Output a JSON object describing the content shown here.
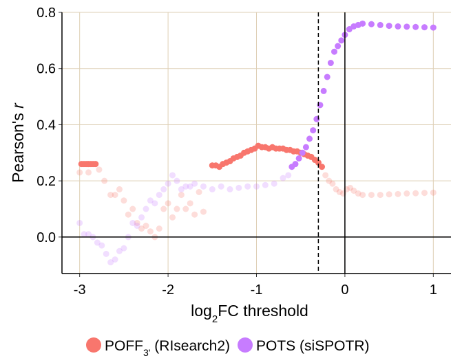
{
  "chart_data": {
    "type": "scatter",
    "x_label_parts": [
      "log",
      "2",
      "FC threshold"
    ],
    "y_label_parts": [
      "Pearson's ",
      "r"
    ],
    "xlim": [
      -3.2,
      1.2
    ],
    "ylim": [
      -0.13,
      0.8
    ],
    "xticks": [
      -3,
      -2,
      -1,
      0,
      1
    ],
    "yticks": [
      {
        "value": 0,
        "label": "0.0"
      },
      0.2,
      0.4,
      0.6,
      0.8
    ],
    "grid": true,
    "hlines": [
      {
        "y": 0,
        "style": "solid"
      }
    ],
    "vlines": [
      {
        "x": 0,
        "style": "solid"
      },
      {
        "x": -0.3,
        "style": "dashed"
      }
    ],
    "legend_position": "bottom",
    "series": [
      {
        "color": "#f8766d",
        "alpha": 0.25,
        "x": [
          -3,
          -2.9,
          -2.78,
          -2.72,
          -2.65,
          -2.6,
          -2.55,
          -2.5,
          -2.45,
          -2.4,
          -2.35,
          -2.3,
          -2.25,
          -2.2,
          -2.15,
          -2.1,
          -2.05,
          -2,
          -1.95,
          -1.9,
          -1.85,
          -1.8,
          -1.75,
          -1.7,
          -1.65,
          -1.6,
          -0.22,
          -0.18,
          -0.14,
          -0.1,
          -0.06,
          -0.02,
          0.02,
          0.06,
          0.1,
          0.15,
          0.2,
          0.3,
          0.4,
          0.5,
          0.6,
          0.7,
          0.8,
          0.9,
          1
        ],
        "values": [
          0.23,
          0.23,
          0.24,
          0.2,
          0.15,
          0.15,
          0.17,
          0.13,
          0.08,
          0.1,
          0.05,
          0.03,
          0.04,
          0.02,
          0.0,
          0.03,
          0.1,
          0.12,
          0.07,
          0.1,
          0.15,
          0.1,
          0.12,
          0.08,
          0.16,
          0.09,
          0.22,
          0.2,
          0.19,
          0.17,
          0.16,
          0.155,
          0.17,
          0.175,
          0.165,
          0.155,
          0.15,
          0.15,
          0.15,
          0.152,
          0.153,
          0.155,
          0.156,
          0.157,
          0.158
        ]
      },
      {
        "color": "#c77cff",
        "alpha": 0.25,
        "x": [
          -3,
          -2.95,
          -2.9,
          -2.85,
          -2.8,
          -2.75,
          -2.7,
          -2.65,
          -2.6,
          -2.55,
          -2.5,
          -2.45,
          -2.4,
          -2.35,
          -2.3,
          -2.25,
          -2.2,
          -2.15,
          -2.1,
          -2.05,
          -2,
          -1.95,
          -1.9,
          -1.85,
          -1.8,
          -1.75,
          -1.7,
          -1.6,
          -1.5,
          -1.4,
          -1.3,
          -1.2,
          -1.1,
          -1.0,
          -0.9,
          -0.8,
          -0.7,
          -0.64
        ],
        "values": [
          0.05,
          0.01,
          0.01,
          0.0,
          -0.02,
          -0.03,
          -0.06,
          -0.09,
          -0.08,
          -0.05,
          -0.04,
          0.0,
          0.05,
          0.04,
          0.07,
          0.1,
          0.13,
          0.12,
          0.15,
          0.17,
          0.19,
          0.22,
          0.2,
          0.17,
          0.18,
          0.18,
          0.19,
          0.18,
          0.17,
          0.18,
          0.17,
          0.175,
          0.18,
          0.18,
          0.185,
          0.19,
          0.21,
          0.22
        ]
      },
      {
        "name_parts": [
          "POFF",
          "3'",
          " (RIsearch2)"
        ],
        "color": "#f8766d",
        "alpha": 1,
        "x": [
          -2.98,
          -2.96,
          -2.94,
          -2.92,
          -2.9,
          -2.88,
          -2.86,
          -2.84,
          -2.82,
          -1.5,
          -1.46,
          -1.42,
          -1.38,
          -1.34,
          -1.3,
          -1.26,
          -1.22,
          -1.18,
          -1.14,
          -1.1,
          -1.06,
          -1.02,
          -0.98,
          -0.94,
          -0.9,
          -0.86,
          -0.82,
          -0.78,
          -0.74,
          -0.7,
          -0.66,
          -0.62,
          -0.58,
          -0.54,
          -0.5,
          -0.46,
          -0.42,
          -0.38,
          -0.34,
          -0.3,
          -0.26
        ],
        "values": [
          0.26,
          0.26,
          0.26,
          0.26,
          0.26,
          0.26,
          0.26,
          0.26,
          0.26,
          0.255,
          0.255,
          0.25,
          0.26,
          0.265,
          0.27,
          0.28,
          0.285,
          0.29,
          0.3,
          0.305,
          0.31,
          0.315,
          0.325,
          0.32,
          0.32,
          0.315,
          0.32,
          0.315,
          0.315,
          0.315,
          0.31,
          0.31,
          0.305,
          0.305,
          0.3,
          0.295,
          0.29,
          0.285,
          0.275,
          0.265,
          0.25
        ]
      },
      {
        "name_parts": [
          "POTS (siSPOTR)"
        ],
        "color": "#c77cff",
        "alpha": 1,
        "x": [
          -0.6,
          -0.56,
          -0.52,
          -0.48,
          -0.44,
          -0.4,
          -0.36,
          -0.32,
          -0.28,
          -0.24,
          -0.2,
          -0.16,
          -0.12,
          -0.08,
          -0.04,
          0,
          0.05,
          0.1,
          0.15,
          0.2,
          0.3,
          0.4,
          0.5,
          0.6,
          0.7,
          0.8,
          0.9,
          1
        ],
        "values": [
          0.25,
          0.26,
          0.28,
          0.3,
          0.32,
          0.35,
          0.38,
          0.42,
          0.47,
          0.52,
          0.57,
          0.62,
          0.66,
          0.68,
          0.7,
          0.72,
          0.74,
          0.75,
          0.755,
          0.76,
          0.758,
          0.755,
          0.752,
          0.75,
          0.749,
          0.748,
          0.747,
          0.746
        ]
      }
    ]
  }
}
